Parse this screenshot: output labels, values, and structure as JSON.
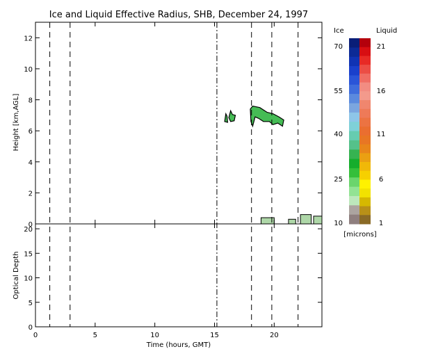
{
  "chart_data": {
    "type": "heatmap",
    "title": "Ice and Liquid Effective Radius, SHB, December 24, 1997",
    "xlabel": "Time (hours, GMT)",
    "xlim": [
      0,
      24
    ],
    "x_ticks": [
      "0",
      "5",
      "10",
      "15",
      "20"
    ],
    "x_tick_values": [
      0,
      5,
      10,
      15,
      20
    ],
    "markers": {
      "dashed_times": [
        1.2,
        2.9,
        22.0,
        19.8,
        18.1
      ],
      "dashdot_times": [
        15.2
      ]
    },
    "top_panel": {
      "ylabel": "Height [km,AGL]",
      "ylim": [
        0,
        13
      ],
      "y_ticks": [
        "0",
        "2",
        "4",
        "6",
        "8",
        "10",
        "12"
      ],
      "y_tick_values": [
        0,
        2,
        4,
        6,
        8,
        10,
        12
      ],
      "ice_cloud_regions": [
        {
          "kind": "ice",
          "color": "#45bc55",
          "outline": [
            [
              15.85,
              6.6
            ],
            [
              15.95,
              7.1
            ],
            [
              16.05,
              6.95
            ],
            [
              16.1,
              6.55
            ]
          ]
        },
        {
          "kind": "ice",
          "color": "#45bc55",
          "outline": [
            [
              16.2,
              6.85
            ],
            [
              16.35,
              7.3
            ],
            [
              16.5,
              7.05
            ],
            [
              16.75,
              7.0
            ],
            [
              16.65,
              6.65
            ],
            [
              16.35,
              6.6
            ]
          ]
        },
        {
          "kind": "ice",
          "color": "#45bc55",
          "outline": [
            [
              18.0,
              7.4
            ],
            [
              18.2,
              7.6
            ],
            [
              18.8,
              7.5
            ],
            [
              19.4,
              7.2
            ],
            [
              19.9,
              7.1
            ],
            [
              20.4,
              6.9
            ],
            [
              20.8,
              6.7
            ],
            [
              20.7,
              6.3
            ],
            [
              20.3,
              6.5
            ],
            [
              19.9,
              6.4
            ],
            [
              19.6,
              6.6
            ],
            [
              19.1,
              6.6
            ],
            [
              18.7,
              6.8
            ],
            [
              18.4,
              6.9
            ],
            [
              18.2,
              6.3
            ],
            [
              18.05,
              6.6
            ]
          ]
        }
      ],
      "low_liquid_regions": [
        {
          "kind": "liquid",
          "color": "#aed7a8",
          "x0": 18.9,
          "x1": 20.0,
          "y0": 0.0,
          "y1": 0.4
        },
        {
          "kind": "liquid",
          "color": "#aed7a8",
          "x0": 21.2,
          "x1": 21.8,
          "y0": 0.0,
          "y1": 0.3
        },
        {
          "kind": "liquid",
          "color": "#aed7a8",
          "x0": 22.2,
          "x1": 23.1,
          "y0": 0.0,
          "y1": 0.6
        },
        {
          "kind": "liquid",
          "color": "#aed7a8",
          "x0": 23.3,
          "x1": 24.0,
          "y0": 0.0,
          "y1": 0.5
        }
      ]
    },
    "bottom_panel": {
      "ylabel": "Optical Depth",
      "ylim": [
        0,
        21
      ],
      "y_ticks": [
        "0",
        "5",
        "10",
        "15",
        "20"
      ],
      "y_tick_values": [
        0,
        5,
        10,
        15,
        20
      ]
    },
    "colorbar": {
      "ice_label": "Ice",
      "liquid_label": "Liquid",
      "units": "[microns]",
      "ice_ticks": [
        "70",
        "55",
        "40",
        "25",
        "10"
      ],
      "liquid_ticks": [
        "21",
        "16",
        "11",
        "6",
        "1"
      ],
      "ice_colors_top_to_bottom": [
        "#0a1e78",
        "#0d2a96",
        "#1133b4",
        "#1a40cc",
        "#2a55d8",
        "#3f6ddc",
        "#5b8ade",
        "#7ba6df",
        "#8ec6e8",
        "#7fd1d8",
        "#66ccb0",
        "#55c18a",
        "#36b351",
        "#16ad2c",
        "#35bf3a",
        "#6bd56c",
        "#93e394",
        "#bde8bc",
        "#aca4a0",
        "#8f7f7f"
      ],
      "liquid_colors_top_to_bottom": [
        "#b4000c",
        "#d80e12",
        "#e82a25",
        "#ec4d45",
        "#f06d64",
        "#f28c82",
        "#f39a8c",
        "#f0866e",
        "#ee7a58",
        "#ec7342",
        "#ea6e30",
        "#e87624",
        "#e8861a",
        "#eaa012",
        "#f0b808",
        "#f6d000",
        "#fff200",
        "#f2e200",
        "#d6b800",
        "#b89018",
        "#8a6a26"
      ]
    }
  }
}
